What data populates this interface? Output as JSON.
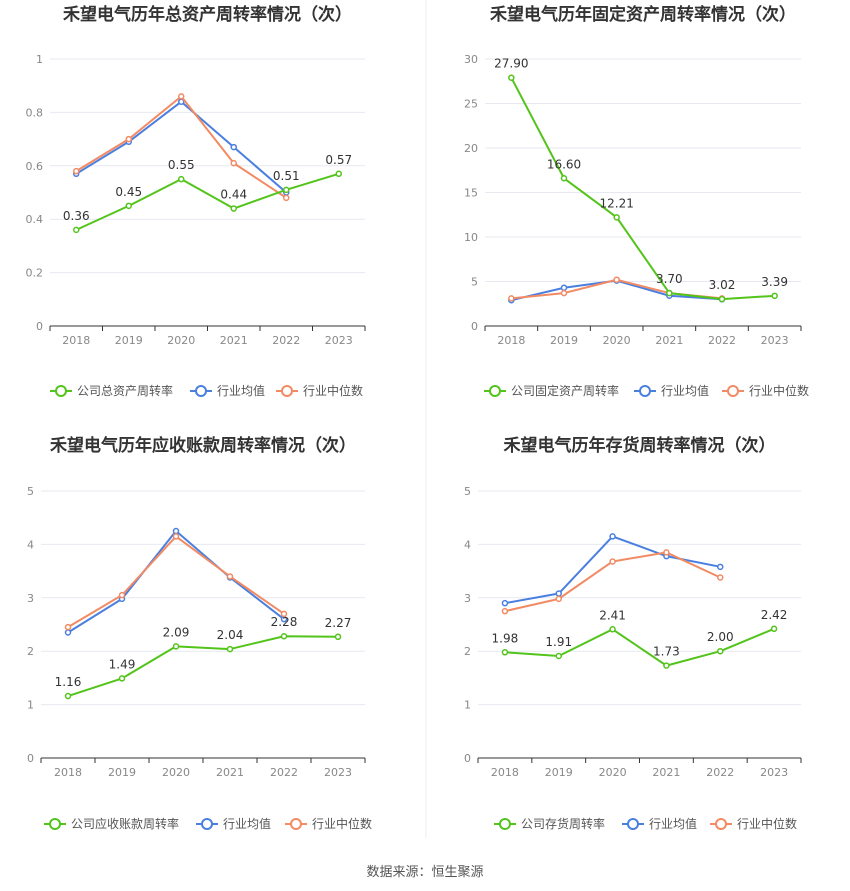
{
  "colors": {
    "company": "#52c41a",
    "industry_avg": "#4a7fe0",
    "industry_median": "#f28a63",
    "grid": "#e6e9f0",
    "axis": "#333333",
    "tick": "#888888",
    "title": "#333333"
  },
  "legend": {
    "industry_avg": "行业均值",
    "industry_median": "行业中位数"
  },
  "source": "数据来源：恒生聚源",
  "chart_data": [
    {
      "type": "line",
      "title": "禾望电气历年总资产周转率情况（次）",
      "categories": [
        "2018",
        "2019",
        "2020",
        "2021",
        "2022",
        "2023"
      ],
      "ylim": [
        0,
        1
      ],
      "yticks": [
        "0",
        "0.2",
        "0.4",
        "0.6",
        "0.8",
        "1"
      ],
      "grid": true,
      "legend_position": "bottom",
      "series": [
        {
          "name": "公司总资产周转率",
          "values": [
            0.36,
            0.45,
            0.55,
            0.44,
            0.51,
            0.57
          ],
          "labels": [
            "0.36",
            "0.45",
            "0.55",
            "0.44",
            "0.51",
            "0.57"
          ]
        },
        {
          "name": "行业均值",
          "values": [
            0.57,
            0.69,
            0.84,
            0.67,
            0.5,
            null
          ]
        },
        {
          "name": "行业中位数",
          "values": [
            0.58,
            0.7,
            0.86,
            0.61,
            0.48,
            null
          ]
        }
      ]
    },
    {
      "type": "line",
      "title": "禾望电气历年固定资产周转率情况（次）",
      "categories": [
        "2018",
        "2019",
        "2020",
        "2021",
        "2022",
        "2023"
      ],
      "ylim": [
        0,
        30
      ],
      "yticks": [
        "0",
        "5",
        "10",
        "15",
        "20",
        "25",
        "30"
      ],
      "grid": true,
      "legend_position": "bottom",
      "series": [
        {
          "name": "公司固定资产周转率",
          "values": [
            27.9,
            16.6,
            12.21,
            3.7,
            3.02,
            3.39
          ],
          "labels": [
            "27.90",
            "16.60",
            "12.21",
            "3.70",
            "3.02",
            "3.39"
          ]
        },
        {
          "name": "行业均值",
          "values": [
            2.9,
            4.3,
            5.1,
            3.4,
            3.0,
            null
          ]
        },
        {
          "name": "行业中位数",
          "values": [
            3.1,
            3.7,
            5.2,
            3.7,
            3.1,
            null
          ]
        }
      ]
    },
    {
      "type": "line",
      "title": "禾望电气历年应收账款周转率情况（次）",
      "categories": [
        "2018",
        "2019",
        "2020",
        "2021",
        "2022",
        "2023"
      ],
      "ylim": [
        0,
        5
      ],
      "yticks": [
        "0",
        "1",
        "2",
        "3",
        "4",
        "5"
      ],
      "grid": true,
      "legend_position": "bottom",
      "series": [
        {
          "name": "公司应收账款周转率",
          "values": [
            1.16,
            1.49,
            2.09,
            2.04,
            2.28,
            2.27
          ],
          "labels": [
            "1.16",
            "1.49",
            "2.09",
            "2.04",
            "2.28",
            "2.27"
          ]
        },
        {
          "name": "行业均值",
          "values": [
            2.35,
            2.98,
            4.25,
            3.38,
            2.6,
            null
          ]
        },
        {
          "name": "行业中位数",
          "values": [
            2.45,
            3.05,
            4.15,
            3.4,
            2.7,
            null
          ]
        }
      ]
    },
    {
      "type": "line",
      "title": "禾望电气历年存货周转率情况（次）",
      "categories": [
        "2018",
        "2019",
        "2020",
        "2021",
        "2022",
        "2023"
      ],
      "ylim": [
        0,
        5
      ],
      "yticks": [
        "0",
        "1",
        "2",
        "3",
        "4",
        "5"
      ],
      "grid": true,
      "legend_position": "bottom",
      "series": [
        {
          "name": "公司存货周转率",
          "values": [
            1.98,
            1.91,
            2.41,
            1.73,
            2.0,
            2.42
          ],
          "labels": [
            "1.98",
            "1.91",
            "2.41",
            "1.73",
            "2.00",
            "2.42"
          ]
        },
        {
          "name": "行业均值",
          "values": [
            2.9,
            3.08,
            4.15,
            3.78,
            3.58,
            null
          ]
        },
        {
          "name": "行业中位数",
          "values": [
            2.75,
            2.98,
            3.68,
            3.85,
            3.38,
            null
          ]
        }
      ]
    }
  ]
}
